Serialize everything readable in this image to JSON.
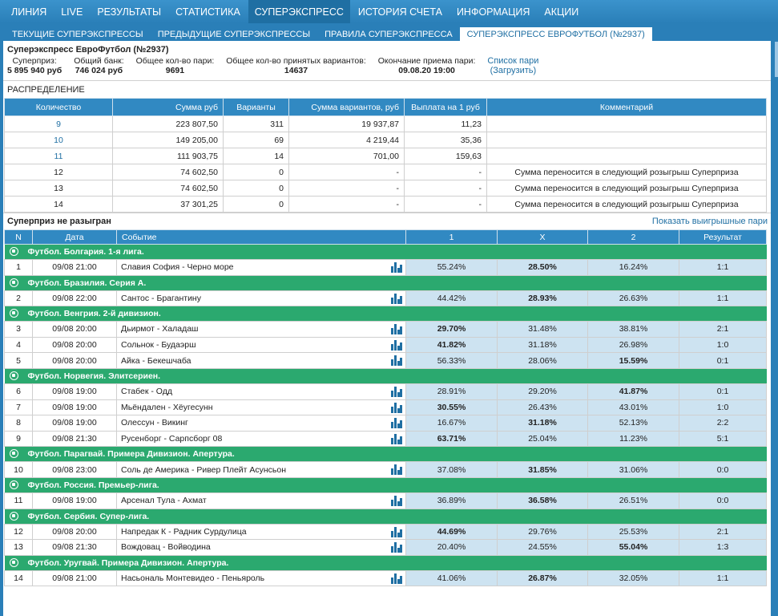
{
  "nav": [
    "ЛИНИЯ",
    "LIVE",
    "РЕЗУЛЬТАТЫ",
    "СТАТИСТИКА",
    "СУПЕРЭКСПРЕСС",
    "ИСТОРИЯ СЧЕТА",
    "ИНФОРМАЦИЯ",
    "АКЦИИ"
  ],
  "subtabs": [
    "ТЕКУЩИЕ СУПЕРЭКСПРЕССЫ",
    "ПРЕДЫДУЩИЕ СУПЕРЭКСПРЕССЫ",
    "ПРАВИЛА СУПЕРЭКСПРЕССА",
    "СУПЕРЭКСПРЕСС ЕВРОФУТБОЛ (№2937)"
  ],
  "title": "Суперэкспресс ЕвроФутбол (№2937)",
  "info": {
    "superprize_label": "Суперприз:",
    "superprize": "5 895 940 руб",
    "bank_label": "Общий банк:",
    "bank": "746 024 руб",
    "bets_label": "Общее кол-во пари:",
    "bets": "9691",
    "variants_label": "Общее кол-во принятых вариантов:",
    "variants": "14637",
    "end_label": "Окончание приема пари:",
    "end": "09.08.20 19:00",
    "list_link": "Список пари",
    "load_link": "(Загрузить)"
  },
  "distribution": {
    "label": "РАСПРЕДЕЛЕНИЕ",
    "headers": [
      "Количество",
      "Сумма руб",
      "Варианты",
      "Сумма вариантов, руб",
      "Выплата на 1 руб",
      "Комментарий"
    ],
    "rows": [
      [
        "9",
        "223 807,50",
        "311",
        "19 937,87",
        "11,23",
        ""
      ],
      [
        "10",
        "149 205,00",
        "69",
        "4 219,44",
        "35,36",
        ""
      ],
      [
        "11",
        "111 903,75",
        "14",
        "701,00",
        "159,63",
        ""
      ],
      [
        "12",
        "74 602,50",
        "0",
        "-",
        "-",
        "Сумма переносится в следующий розыгрыш Суперприза"
      ],
      [
        "13",
        "74 602,50",
        "0",
        "-",
        "-",
        "Сумма переносится в следующий розыгрыш Суперприза"
      ],
      [
        "14",
        "37 301,25",
        "0",
        "-",
        "-",
        "Сумма переносится в следующий розыгрыш Суперприза"
      ]
    ]
  },
  "superprize_status": "Суперприз не разыгран",
  "show_winning": "Показать выигрышные пари",
  "events_headers": [
    "N",
    "Дата",
    "Событие",
    "1",
    "X",
    "2",
    "Результат"
  ],
  "leagues": [
    {
      "name": "Футбол. Болгария. 1-я лига.",
      "matches": [
        {
          "n": "1",
          "date": "09/08 21:00",
          "event": "Славия София - Черно море",
          "p1": "55.24%",
          "px": "28.50%",
          "p2": "16.24%",
          "bold": "x",
          "result": "1:1"
        }
      ]
    },
    {
      "name": "Футбол. Бразилия. Серия А.",
      "matches": [
        {
          "n": "2",
          "date": "09/08 22:00",
          "event": "Сантос - Брагантину",
          "p1": "44.42%",
          "px": "28.93%",
          "p2": "26.63%",
          "bold": "x",
          "result": "1:1"
        }
      ]
    },
    {
      "name": "Футбол. Венгрия. 2-й дивизион.",
      "matches": [
        {
          "n": "3",
          "date": "09/08 20:00",
          "event": "Дьирмот - Халадаш",
          "p1": "29.70%",
          "px": "31.48%",
          "p2": "38.81%",
          "bold": "1",
          "result": "2:1"
        },
        {
          "n": "4",
          "date": "09/08 20:00",
          "event": "Сольнок - Будаэрш",
          "p1": "41.82%",
          "px": "31.18%",
          "p2": "26.98%",
          "bold": "1",
          "result": "1:0"
        },
        {
          "n": "5",
          "date": "09/08 20:00",
          "event": "Айка - Бекешчаба",
          "p1": "56.33%",
          "px": "28.06%",
          "p2": "15.59%",
          "bold": "2",
          "result": "0:1"
        }
      ]
    },
    {
      "name": "Футбол. Норвегия. Элитсериен.",
      "matches": [
        {
          "n": "6",
          "date": "09/08 19:00",
          "event": "Стабек - Одд",
          "p1": "28.91%",
          "px": "29.20%",
          "p2": "41.87%",
          "bold": "2",
          "result": "0:1"
        },
        {
          "n": "7",
          "date": "09/08 19:00",
          "event": "Мьёндален - Хёугесунн",
          "p1": "30.55%",
          "px": "26.43%",
          "p2": "43.01%",
          "bold": "1",
          "result": "1:0"
        },
        {
          "n": "8",
          "date": "09/08 19:00",
          "event": "Олессун - Викинг",
          "p1": "16.67%",
          "px": "31.18%",
          "p2": "52.13%",
          "bold": "x",
          "result": "2:2"
        },
        {
          "n": "9",
          "date": "09/08 21:30",
          "event": "Русенборг - Сарпсборг 08",
          "p1": "63.71%",
          "px": "25.04%",
          "p2": "11.23%",
          "bold": "1",
          "result": "5:1"
        }
      ]
    },
    {
      "name": "Футбол. Парагвай. Примера Дивизион. Апертура.",
      "matches": [
        {
          "n": "10",
          "date": "09/08 23:00",
          "event": "Соль де Америка - Ривер Плейт Асунсьон",
          "p1": "37.08%",
          "px": "31.85%",
          "p2": "31.06%",
          "bold": "x",
          "result": "0:0"
        }
      ]
    },
    {
      "name": "Футбол. Россия. Премьер-лига.",
      "matches": [
        {
          "n": "11",
          "date": "09/08 19:00",
          "event": "Арсенал Тула - Ахмат",
          "p1": "36.89%",
          "px": "36.58%",
          "p2": "26.51%",
          "bold": "x",
          "result": "0:0"
        }
      ]
    },
    {
      "name": "Футбол. Сербия. Супер-лига.",
      "matches": [
        {
          "n": "12",
          "date": "09/08 20:00",
          "event": "Напредак К - Радник Сурдулица",
          "p1": "44.69%",
          "px": "29.76%",
          "p2": "25.53%",
          "bold": "1",
          "result": "2:1"
        },
        {
          "n": "13",
          "date": "09/08 21:30",
          "event": "Вождовац - Войводина",
          "p1": "20.40%",
          "px": "24.55%",
          "p2": "55.04%",
          "bold": "2",
          "result": "1:3"
        }
      ]
    },
    {
      "name": "Футбол. Уругвай. Примера Дивизион. Апертура.",
      "matches": [
        {
          "n": "14",
          "date": "09/08 21:00",
          "event": "Насьональ Монтевидео - Пеньяроль",
          "p1": "41.06%",
          "px": "26.87%",
          "p2": "32.05%",
          "bold": "x",
          "result": "1:1"
        }
      ]
    }
  ],
  "icons": {
    "league": "soccer-ball-icon",
    "stats": "bar-chart-icon"
  }
}
